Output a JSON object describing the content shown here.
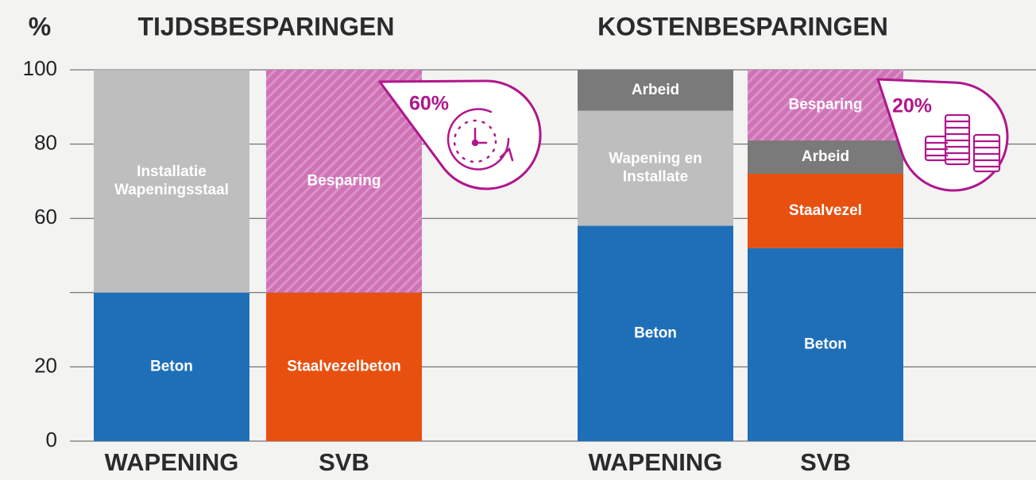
{
  "chart_data": [
    {
      "type": "bar",
      "stacked": true,
      "title": "TIJDSBESPARINGEN",
      "ylabel": "%",
      "categories": [
        "WAPENING",
        "SVB"
      ],
      "series": [
        {
          "name": "Beton",
          "color": "#1f6fb8",
          "values": [
            40,
            null
          ]
        },
        {
          "name": "Staalvezelbeton",
          "color": "#e8500f",
          "values": [
            null,
            40
          ]
        },
        {
          "name": "Installatie Wapeningsstaal",
          "color": "#bebebe",
          "values": [
            60,
            null
          ]
        },
        {
          "name": "Besparing",
          "color": "hatch",
          "values": [
            null,
            60
          ]
        }
      ],
      "ylim": [
        0,
        100
      ],
      "yticks": [
        0,
        20,
        60,
        80,
        100
      ],
      "ygrid": [
        0,
        20,
        40,
        60,
        80,
        100
      ],
      "annotation": "60%"
    },
    {
      "type": "bar",
      "stacked": true,
      "title": "KOSTENBESPARINGEN",
      "categories": [
        "WAPENING",
        "SVB"
      ],
      "series": [
        {
          "name": "Beton",
          "color": "#1f6fb8",
          "values": [
            58,
            52
          ]
        },
        {
          "name": "Staalvezel",
          "color": "#e8500f",
          "values": [
            null,
            20
          ]
        },
        {
          "name": "Wapening en Installate",
          "color": "#bebebe",
          "values": [
            31,
            null
          ]
        },
        {
          "name": "Arbeid",
          "color": "#7a7a7a",
          "values": [
            11,
            9
          ]
        },
        {
          "name": "Besparing",
          "color": "hatch",
          "values": [
            null,
            19
          ]
        }
      ],
      "ylim": [
        0,
        100
      ],
      "ygrid": [
        0,
        20,
        40,
        60,
        80,
        100
      ],
      "annotation": "20%"
    }
  ]
}
